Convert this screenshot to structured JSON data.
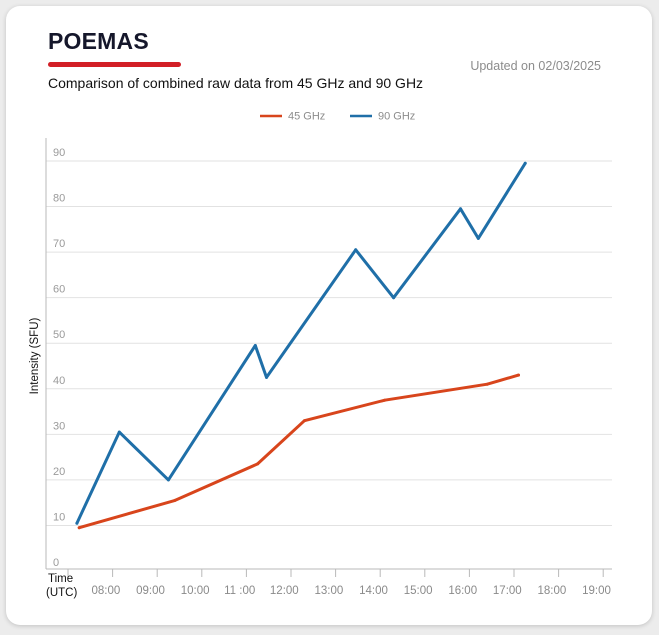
{
  "header": {
    "title": "POEMAS",
    "updated": "Updated on 02/03/2025",
    "subtitle": "Comparison of combined raw data from 45 GHz and 90 GHz"
  },
  "colors": {
    "accent": "#d21f26",
    "series_45": "#d8451c",
    "series_90": "#1f6fa8"
  },
  "chart_data": {
    "type": "line",
    "title": "Comparison of combined raw data from 45 GHz and 90 GHz",
    "xlabel": "Time (UTC)",
    "xlabel_lines": [
      "Time",
      "(UTC)"
    ],
    "ylabel": "Intensity (SFU)",
    "x_ticks": [
      "08:00",
      "09:00",
      "10:00",
      "11 :00",
      "12:00",
      "13:00",
      "14:00",
      "15:00",
      "16:00",
      "17:00",
      "18:00",
      "19:00"
    ],
    "x_range_hours": [
      7.5,
      19.5
    ],
    "y_ticks": [
      0,
      10,
      20,
      30,
      40,
      50,
      60,
      70,
      80,
      90
    ],
    "ylim": [
      0,
      95
    ],
    "grid": true,
    "legend_position": "top-center",
    "series": [
      {
        "name": "45 GHz",
        "color": "#d8451c",
        "points": [
          {
            "x": 7.75,
            "y": 9.5
          },
          {
            "x": 9.9,
            "y": 15.5
          },
          {
            "x": 11.75,
            "y": 23.5
          },
          {
            "x": 12.8,
            "y": 33
          },
          {
            "x": 14.6,
            "y": 37.5
          },
          {
            "x": 16.9,
            "y": 41
          },
          {
            "x": 17.6,
            "y": 43
          }
        ]
      },
      {
        "name": "90 GHz",
        "color": "#1f6fa8",
        "points": [
          {
            "x": 7.7,
            "y": 10.5
          },
          {
            "x": 8.65,
            "y": 30.5
          },
          {
            "x": 9.75,
            "y": 20
          },
          {
            "x": 11.7,
            "y": 49.5
          },
          {
            "x": 11.95,
            "y": 42.5
          },
          {
            "x": 13.95,
            "y": 70.5
          },
          {
            "x": 14.8,
            "y": 60
          },
          {
            "x": 16.3,
            "y": 79.5
          },
          {
            "x": 16.7,
            "y": 73
          },
          {
            "x": 17.75,
            "y": 89.5
          }
        ]
      }
    ]
  }
}
